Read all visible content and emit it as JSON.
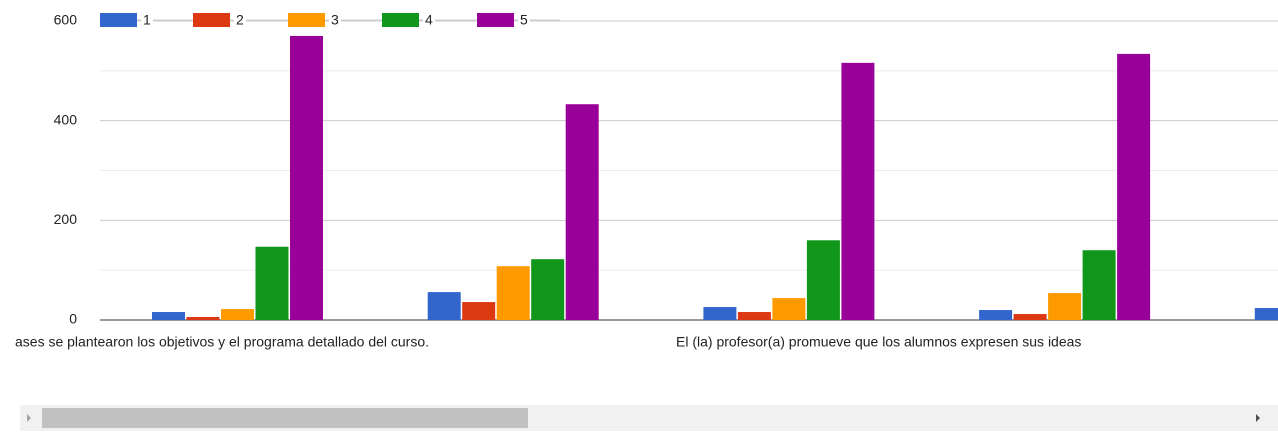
{
  "chart_data": {
    "type": "bar",
    "categories": [
      "ases se plantearon los objetivos y el programa detallado del curso.",
      null,
      "El (la) profesor(a) promueve que los alumnos expresen sus ideas",
      null,
      null
    ],
    "series": [
      {
        "name": "1",
        "color": "#3366cc",
        "values": [
          16,
          56,
          26,
          20,
          24
        ]
      },
      {
        "name": "2",
        "color": "#dc3912",
        "values": [
          6,
          36,
          16,
          12,
          null
        ]
      },
      {
        "name": "3",
        "color": "#ff9900",
        "values": [
          22,
          108,
          44,
          54,
          null
        ]
      },
      {
        "name": "4",
        "color": "#109618",
        "values": [
          147,
          122,
          160,
          140,
          null
        ]
      },
      {
        "name": "5",
        "color": "#990099",
        "values": [
          570,
          433,
          516,
          534,
          null
        ]
      }
    ],
    "ylim": [
      0,
      600
    ],
    "yticks": [
      0,
      200,
      400,
      600
    ],
    "minor_yticks": [
      100,
      300,
      500
    ],
    "grid": true,
    "legend": "top"
  }
}
